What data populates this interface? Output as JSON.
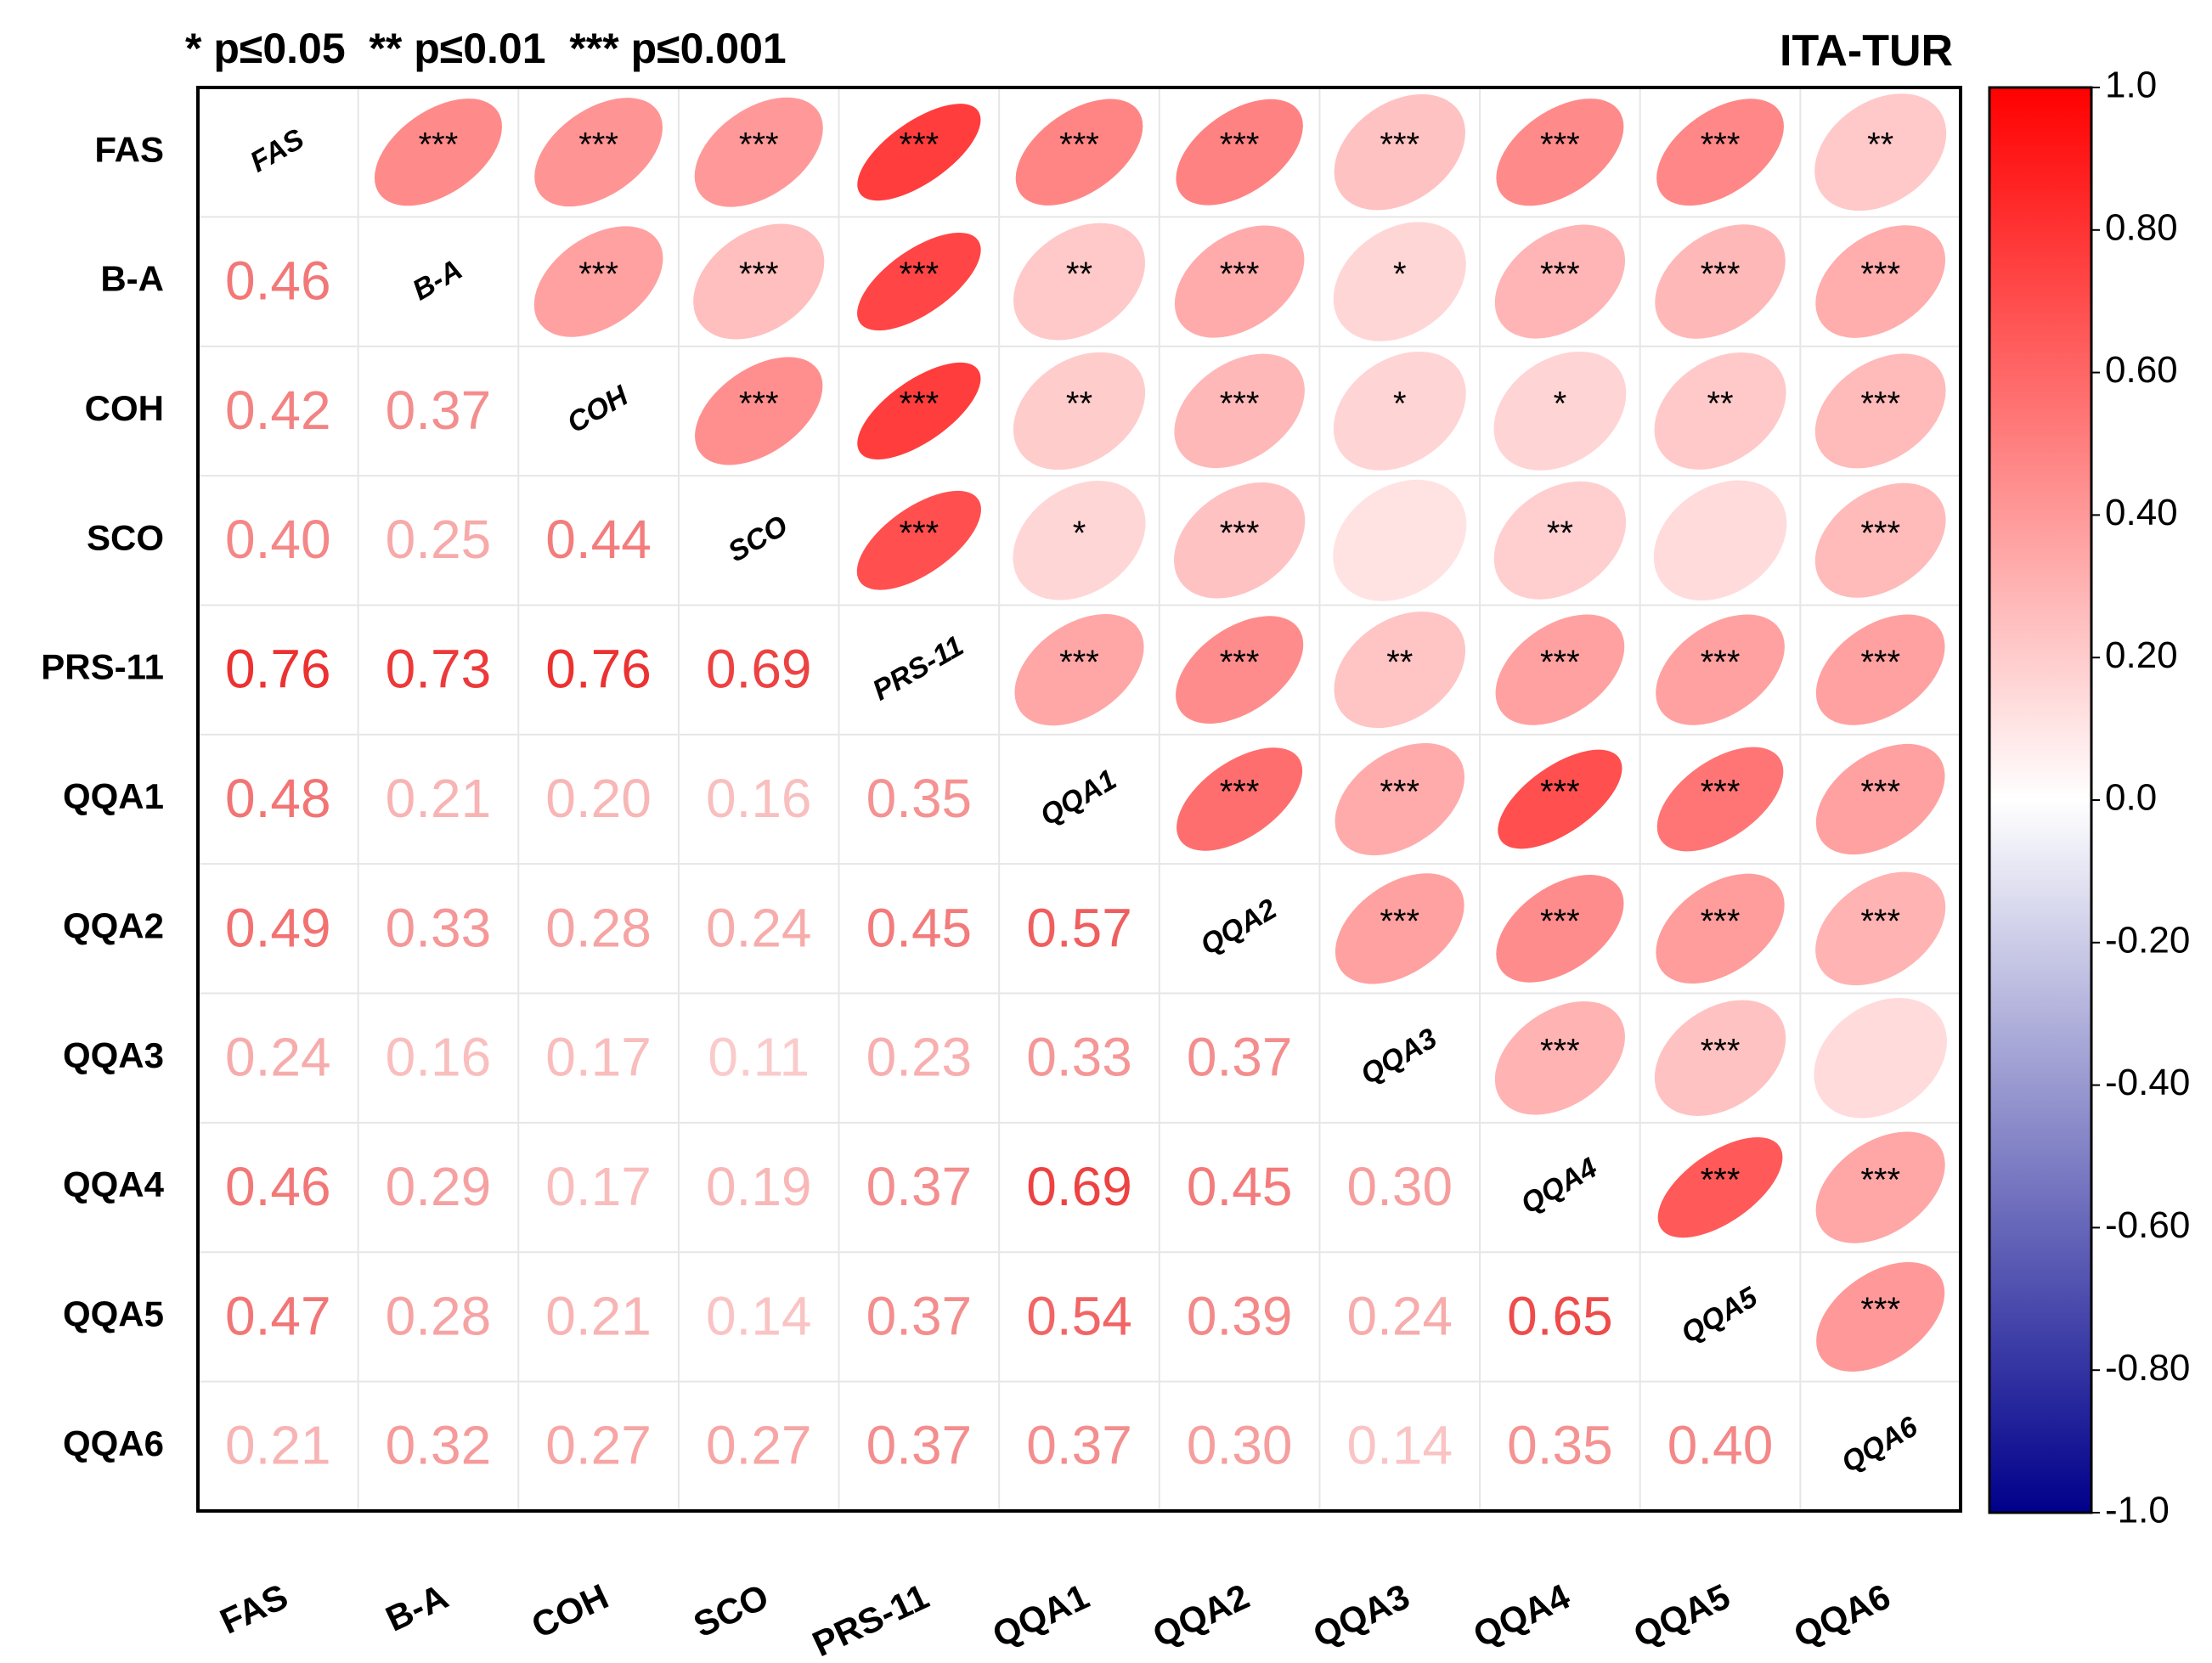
{
  "chart_data": {
    "type": "heatmap",
    "title": "ITA-TUR",
    "significance_legend": "* p≤0.05  ** p≤0.01  *** p≤0.001",
    "variables": [
      "FAS",
      "B-A",
      "COH",
      "SCO",
      "PRS-11",
      "QQA1",
      "QQA2",
      "QQA3",
      "QQA4",
      "QQA5",
      "QQA6"
    ],
    "lower_triangle_values": [
      [
        "0.46"
      ],
      [
        "0.42",
        "0.37"
      ],
      [
        "0.40",
        "0.25",
        "0.44"
      ],
      [
        "0.76",
        "0.73",
        "0.76",
        "0.69"
      ],
      [
        "0.48",
        "0.21",
        "0.20",
        "0.16",
        "0.35"
      ],
      [
        "0.49",
        "0.33",
        "0.28",
        "0.24",
        "0.45",
        "0.57"
      ],
      [
        "0.24",
        "0.16",
        "0.17",
        "0.11",
        "0.23",
        "0.33",
        "0.37"
      ],
      [
        "0.46",
        "0.29",
        "0.17",
        "0.19",
        "0.37",
        "0.69",
        "0.45",
        "0.30"
      ],
      [
        "0.47",
        "0.28",
        "0.21",
        "0.14",
        "0.37",
        "0.54",
        "0.39",
        "0.24",
        "0.65"
      ],
      [
        "0.21",
        "0.32",
        "0.27",
        "0.27",
        "0.37",
        "0.37",
        "0.30",
        "0.14",
        "0.35",
        "0.40"
      ]
    ],
    "upper_triangle_significance": [
      [
        "***",
        "***",
        "***",
        "***",
        "***",
        "***",
        "***",
        "***",
        "***",
        "**"
      ],
      [
        "***",
        "***",
        "***",
        "**",
        "***",
        "*",
        "***",
        "***",
        "***"
      ],
      [
        "***",
        "***",
        "**",
        "***",
        "*",
        "*",
        "**",
        "***"
      ],
      [
        "***",
        "*",
        "***",
        "",
        "**",
        "",
        "***"
      ],
      [
        "***",
        "***",
        "**",
        "***",
        "***",
        "***"
      ],
      [
        "***",
        "***",
        "***",
        "***",
        "***"
      ],
      [
        "***",
        "***",
        "***",
        "***"
      ],
      [
        "***",
        "***",
        ""
      ],
      [
        "***",
        "***"
      ],
      [
        "***"
      ]
    ],
    "colorbar": {
      "range": [
        -1.0,
        1.0
      ],
      "tick_labels": [
        "1.0",
        "0.80",
        "0.60",
        "0.40",
        "0.20",
        "0.0",
        "-0.20",
        "-0.40",
        "-0.60",
        "-0.80",
        "-1.0"
      ],
      "tick_values": [
        1.0,
        0.8,
        0.6,
        0.4,
        0.2,
        0.0,
        -0.2,
        -0.4,
        -0.6,
        -0.8,
        -1.0
      ],
      "colors": {
        "positive": "#ff0000",
        "zero": "#ffffff",
        "negative": "#00008b"
      }
    }
  }
}
